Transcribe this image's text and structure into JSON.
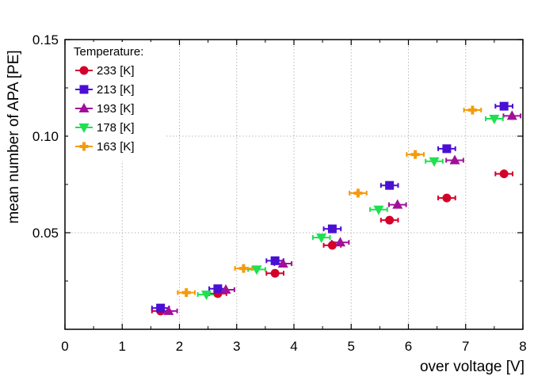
{
  "chart_data": {
    "type": "scatter",
    "xlabel": "over voltage [V]",
    "ylabel": "mean number of APA [PE]",
    "xlim": [
      0,
      8
    ],
    "ylim": [
      0,
      0.15
    ],
    "x_ticks": [
      "0",
      "1",
      "2",
      "3",
      "4",
      "5",
      "6",
      "7",
      "8"
    ],
    "x_tick_values": [
      0,
      1,
      2,
      3,
      4,
      5,
      6,
      7,
      8
    ],
    "y_ticks": [
      "0.05",
      "0.10",
      "0.15"
    ],
    "y_tick_values": [
      0.05,
      0.1,
      0.15
    ],
    "grid": true,
    "legend_title": "Temperature:",
    "legend_position": "top-left",
    "x_error": 0.15,
    "series": [
      {
        "name": "233 [K]",
        "color": "#d4002a",
        "marker": "circle",
        "points": [
          [
            1.67,
            0.0095
          ],
          [
            2.67,
            0.0185
          ],
          [
            3.67,
            0.029
          ],
          [
            4.67,
            0.0435
          ],
          [
            5.67,
            0.0565
          ],
          [
            6.67,
            0.068
          ],
          [
            7.67,
            0.0805
          ]
        ]
      },
      {
        "name": "213 [K]",
        "color": "#4a0fd4",
        "marker": "square",
        "points": [
          [
            1.67,
            0.011
          ],
          [
            2.67,
            0.021
          ],
          [
            3.67,
            0.0355
          ],
          [
            4.67,
            0.052
          ],
          [
            5.67,
            0.0745
          ],
          [
            6.67,
            0.0935
          ],
          [
            7.67,
            0.1155
          ]
        ]
      },
      {
        "name": "193 [K]",
        "color": "#a0109a",
        "marker": "triangle-up",
        "points": [
          [
            1.81,
            0.0095
          ],
          [
            2.81,
            0.0205
          ],
          [
            3.81,
            0.034
          ],
          [
            4.81,
            0.045
          ],
          [
            5.81,
            0.0645
          ],
          [
            6.81,
            0.0875
          ],
          [
            7.81,
            0.1105
          ]
        ]
      },
      {
        "name": "178 [K]",
        "color": "#1ee050",
        "marker": "triangle-down",
        "points": [
          [
            2.47,
            0.018
          ],
          [
            3.35,
            0.031
          ],
          [
            4.48,
            0.0475
          ],
          [
            5.48,
            0.062
          ],
          [
            6.45,
            0.087
          ],
          [
            7.5,
            0.109
          ]
        ]
      },
      {
        "name": "163 [K]",
        "color": "#f59b0a",
        "marker": "plus",
        "points": [
          [
            2.12,
            0.019
          ],
          [
            3.12,
            0.0315
          ],
          [
            5.12,
            0.0705
          ],
          [
            6.12,
            0.0905
          ],
          [
            7.12,
            0.1135
          ]
        ]
      }
    ]
  }
}
